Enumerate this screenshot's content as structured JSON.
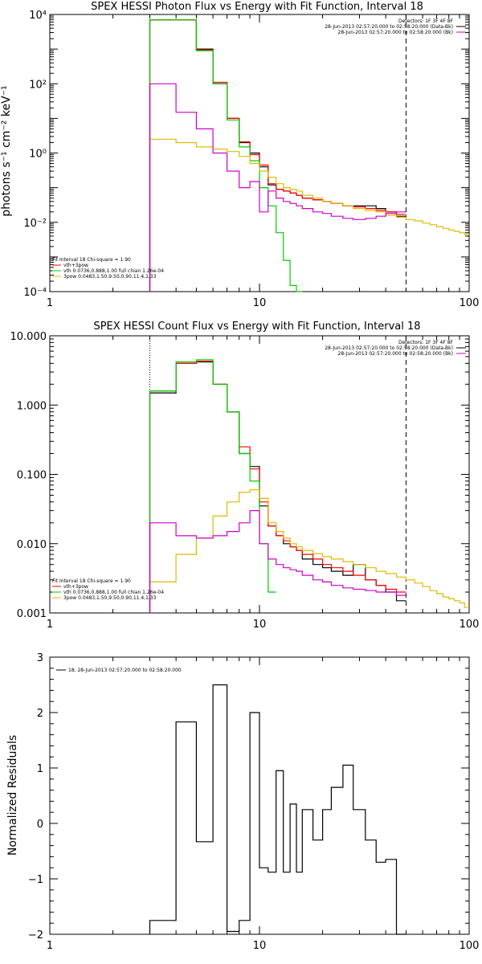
{
  "chart_data": [
    {
      "type": "line",
      "title": "SPEX HESSI Photon Flux vs Energy with Fit Function, Interval 18",
      "ylabel": "photons s⁻¹ cm⁻² keV⁻¹",
      "xlabel": "",
      "xscale": "log",
      "yscale": "log",
      "xlim": [
        1,
        100
      ],
      "ylim": [
        0.0001,
        10000
      ],
      "xticks": [
        "1",
        "10",
        "100"
      ],
      "yticks": [
        "10⁻⁴",
        "10⁻²",
        "10⁰",
        "10²",
        "10⁴"
      ],
      "vlines": [
        {
          "x": 3,
          "style": "dotted"
        },
        {
          "x": 50,
          "style": "dashed"
        }
      ],
      "legend_topright": [
        {
          "text": "Detectors: 1F 3F 4F 8F",
          "color": "#000000",
          "line": false
        },
        {
          "text": "28-Jun-2013 02:57:20.000 to 02:58:20.000 (Data-Bk)",
          "color": "#000000",
          "line": true
        },
        {
          "text": "28-Jun-2013 02:57:20.000 to 02:58:20.000 (Bk)",
          "color": "#cc00cc",
          "line": true
        }
      ],
      "legend_bottomleft": [
        {
          "text": "Fit Interval 18   Chi-square = 1.90",
          "color": "#000000",
          "line": false
        },
        {
          "text": "vth+3pow",
          "color": "#ff0000",
          "line": true
        },
        {
          "text": "vth 0.0736,0.888,1.00  full chian 1.26e-04",
          "color": "#00cc00",
          "line": true
        },
        {
          "text": "3pow 0.0483,1.50,9.50,0.90,11.4,1.33",
          "color": "#ddbb00",
          "line": true
        }
      ],
      "series": [
        {
          "name": "Data-Bk",
          "color": "#000000",
          "start": 3,
          "edges": [
            4,
            5,
            6,
            7,
            8,
            9,
            10,
            11,
            12,
            13,
            14,
            15,
            16,
            18,
            20,
            22,
            25,
            28,
            32,
            36,
            40,
            45,
            50
          ],
          "values": [
            7000,
            7000,
            1000,
            100,
            10,
            2,
            1,
            0.4,
            0.12,
            0.09,
            0.08,
            0.07,
            0.06,
            0.05,
            0.045,
            0.04,
            0.035,
            0.03,
            0.03,
            0.03,
            0.025,
            0.02,
            0.015
          ]
        },
        {
          "name": "vth+3pow",
          "color": "#ff0000",
          "start": 3,
          "edges": [
            4,
            5,
            6,
            7,
            8,
            9,
            10,
            11,
            12,
            13,
            14,
            15,
            16,
            18,
            20,
            22,
            25,
            28,
            32,
            36,
            40,
            45,
            50
          ],
          "values": [
            7000,
            7000,
            950,
            110,
            10,
            2.1,
            0.9,
            0.45,
            0.13,
            0.09,
            0.08,
            0.07,
            0.06,
            0.05,
            0.045,
            0.04,
            0.035,
            0.03,
            0.028,
            0.025,
            0.022,
            0.02,
            0.017
          ]
        },
        {
          "name": "vth",
          "color": "#00cc00",
          "start": 3,
          "edges": [
            4,
            5,
            6,
            7,
            8,
            9,
            10,
            11,
            12,
            13,
            14,
            15,
            16
          ],
          "values": [
            7000,
            7000,
            900,
            100,
            9,
            1.5,
            0.6,
            0.1,
            0.03,
            0.005,
            0.0008,
            0.00015,
            3e-05
          ]
        },
        {
          "name": "3pow",
          "color": "#ddbb00",
          "start": 3,
          "edges": [
            4,
            5,
            6,
            7,
            8,
            9,
            10,
            11,
            12,
            13,
            14,
            15,
            16,
            18,
            20,
            22,
            25,
            28,
            32,
            36,
            40,
            45,
            50,
            55,
            60,
            65,
            70,
            75,
            80,
            85,
            90,
            95,
            100
          ],
          "values": [
            2.5,
            2.0,
            1.5,
            1.3,
            1.1,
            0.8,
            0.5,
            0.3,
            0.2,
            0.13,
            0.1,
            0.09,
            0.08,
            0.06,
            0.05,
            0.04,
            0.035,
            0.03,
            0.025,
            0.022,
            0.02,
            0.016,
            0.014,
            0.012,
            0.011,
            0.0095,
            0.0085,
            0.0075,
            0.0067,
            0.006,
            0.0055,
            0.005,
            0.0045
          ]
        },
        {
          "name": "Bk",
          "color": "#cc00cc",
          "start": 3,
          "edges": [
            4,
            5,
            6,
            7,
            8,
            9,
            10,
            11,
            12,
            13,
            14,
            15,
            16,
            18,
            20,
            22,
            25,
            28,
            32,
            36,
            40,
            45,
            50
          ],
          "values": [
            100,
            15,
            5,
            1,
            0.3,
            0.1,
            0.15,
            0.02,
            0.08,
            0.05,
            0.04,
            0.035,
            0.03,
            0.025,
            0.02,
            0.018,
            0.015,
            0.013,
            0.012,
            0.013,
            0.015,
            0.018,
            0.02
          ]
        }
      ]
    },
    {
      "type": "line",
      "title": "SPEX HESSI Count Flux vs Energy with Fit Function, Interval 18",
      "xlabel": "",
      "ylabel": "",
      "xscale": "log",
      "yscale": "log",
      "xlim": [
        1,
        100
      ],
      "ylim": [
        0.001,
        10
      ],
      "xticks": [
        "1",
        "10",
        "100"
      ],
      "yticks": [
        "0.001",
        "0.010",
        "0.100",
        "1.000",
        "10.000"
      ],
      "vlines": [
        {
          "x": 3,
          "style": "dotted"
        },
        {
          "x": 50,
          "style": "dashed"
        }
      ],
      "legend_topright": [
        {
          "text": "Detectors: 1F 3F 4F 8F",
          "color": "#000000",
          "line": false
        },
        {
          "text": "28-Jun-2013 02:57:20.000 to 02:58:20.000 (Data-Bk)",
          "color": "#000000",
          "line": true
        },
        {
          "text": "28-Jun-2013 02:57:20.000 to 02:58:20.000 (Bk)",
          "color": "#cc00cc",
          "line": true
        }
      ],
      "legend_bottomleft": [
        {
          "text": "Fit Interval 18   Chi-square = 1.90",
          "color": "#000000",
          "line": false
        },
        {
          "text": "vth+3pow",
          "color": "#ff0000",
          "line": true
        },
        {
          "text": "vth 0.0736,0.888,1.00  full chian 1.26e-04",
          "color": "#00cc00",
          "line": true
        },
        {
          "text": "3pow 0.0483,1.50,9.50,0.90,11.4,1.33",
          "color": "#ddbb00",
          "line": true
        }
      ],
      "series": [
        {
          "name": "Data-Bk",
          "color": "#000000",
          "start": 3,
          "edges": [
            4,
            5,
            6,
            7,
            8,
            9,
            10,
            11,
            12,
            13,
            14,
            15,
            16,
            18,
            20,
            22,
            25,
            28,
            32,
            36,
            40,
            45,
            50
          ],
          "values": [
            1.5,
            4.0,
            4.2,
            2.0,
            0.8,
            0.2,
            0.13,
            0.035,
            0.018,
            0.013,
            0.01,
            0.009,
            0.008,
            0.006,
            0.005,
            0.0045,
            0.004,
            0.0035,
            0.005,
            0.003,
            0.0025,
            0.002,
            0.0015
          ]
        },
        {
          "name": "vth+3pow",
          "color": "#ff0000",
          "start": 3,
          "edges": [
            4,
            5,
            6,
            7,
            8,
            9,
            10,
            11,
            12,
            13,
            14,
            15,
            16,
            18,
            20,
            22,
            25,
            28,
            32,
            36,
            40,
            45,
            50
          ],
          "values": [
            1.6,
            4.0,
            4.3,
            2.0,
            0.8,
            0.25,
            0.12,
            0.04,
            0.018,
            0.013,
            0.011,
            0.009,
            0.008,
            0.007,
            0.006,
            0.005,
            0.0045,
            0.004,
            0.0035,
            0.003,
            0.0025,
            0.0022,
            0.002
          ]
        },
        {
          "name": "vth",
          "color": "#00cc00",
          "start": 3,
          "edges": [
            4,
            5,
            6,
            7,
            8,
            9,
            10,
            11,
            12
          ],
          "values": [
            1.6,
            4.2,
            4.5,
            2.0,
            0.8,
            0.2,
            0.08,
            0.01,
            0.002
          ]
        },
        {
          "name": "3pow",
          "color": "#ddbb00",
          "start": 3,
          "edges": [
            4,
            5,
            6,
            7,
            8,
            9,
            10,
            11,
            12,
            13,
            14,
            15,
            16,
            18,
            20,
            22,
            25,
            28,
            32,
            36,
            40,
            45,
            50,
            55,
            60,
            65,
            70,
            75,
            80,
            85,
            90,
            95,
            100
          ],
          "values": [
            0.0028,
            0.007,
            0.012,
            0.025,
            0.04,
            0.055,
            0.06,
            0.045,
            0.02,
            0.015,
            0.012,
            0.01,
            0.009,
            0.008,
            0.0072,
            0.0065,
            0.006,
            0.0055,
            0.005,
            0.0045,
            0.004,
            0.0037,
            0.0033,
            0.003,
            0.0027,
            0.0024,
            0.0021,
            0.0019,
            0.0017,
            0.0016,
            0.0015,
            0.0014,
            0.0012
          ]
        },
        {
          "name": "Bk",
          "color": "#cc00cc",
          "start": 3,
          "edges": [
            4,
            5,
            6,
            7,
            8,
            9,
            10,
            11,
            12,
            13,
            14,
            15,
            16,
            18,
            20,
            22,
            25,
            28,
            32,
            36,
            40,
            45,
            50
          ],
          "values": [
            0.02,
            0.013,
            0.012,
            0.013,
            0.015,
            0.02,
            0.03,
            0.01,
            0.006,
            0.005,
            0.0045,
            0.0042,
            0.004,
            0.0035,
            0.003,
            0.0028,
            0.0025,
            0.0023,
            0.0022,
            0.0021,
            0.002,
            0.002,
            0.0018
          ]
        }
      ]
    },
    {
      "type": "line",
      "title": "",
      "xlabel": "",
      "ylabel": "Normalized Residuals",
      "xscale": "log",
      "yscale": "linear",
      "xlim": [
        1,
        100
      ],
      "ylim": [
        -2,
        3
      ],
      "xticks": [
        "1",
        "10",
        "100"
      ],
      "yticks": [
        "−2",
        "−1",
        "0",
        "1",
        "2",
        "3"
      ],
      "legend_topleft": [
        {
          "text": "18, 28-Jun-2013 02:57:20.000 to 02:58:20.000",
          "color": "#000000",
          "line": true
        }
      ],
      "series": [
        {
          "name": "",
          "color": "#000000",
          "start": 3,
          "edges": [
            4,
            5,
            6,
            7,
            8,
            9,
            10,
            11,
            12,
            13,
            14,
            15,
            16,
            18,
            20,
            22,
            25,
            28,
            32,
            36,
            40,
            45,
            50
          ],
          "values": [
            -1.75,
            1.83,
            -0.33,
            2.5,
            -1.95,
            -1.75,
            2.0,
            -0.8,
            -0.88,
            0.95,
            -0.88,
            0.35,
            -0.88,
            0.25,
            -0.3,
            0.25,
            0.65,
            1.05,
            0.25,
            -0.3,
            -0.7,
            -0.65,
            -2.1
          ]
        }
      ]
    }
  ]
}
